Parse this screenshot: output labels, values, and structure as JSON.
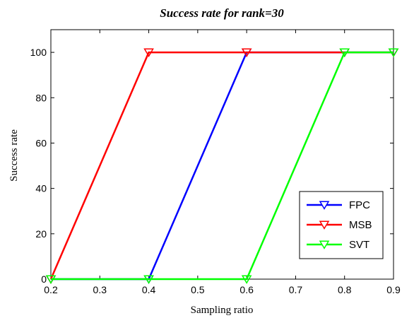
{
  "chart_data": {
    "type": "line",
    "title": "Success rate for rank=30",
    "xlabel": "Sampling ratio",
    "ylabel": "Success rate",
    "xlim": [
      0.2,
      0.9
    ],
    "ylim": [
      0,
      110
    ],
    "xticks": [
      0.2,
      0.3,
      0.4,
      0.5,
      0.6,
      0.7,
      0.8,
      0.9
    ],
    "xtick_labels": [
      "0.2",
      "0.3",
      "0.4",
      "0.5",
      "0.6",
      "0.7",
      "0.8",
      "0.9"
    ],
    "yticks": [
      0,
      20,
      40,
      60,
      80,
      100
    ],
    "ytick_labels": [
      "0",
      "20",
      "40",
      "60",
      "80",
      "100"
    ],
    "grid": false,
    "legend_position": "bottom-right",
    "marker": "down-triangle",
    "series": [
      {
        "name": "FPC",
        "color": "#0000ff",
        "x": [
          0.2,
          0.4,
          0.6,
          0.8,
          0.9
        ],
        "y": [
          0,
          0,
          100,
          100,
          100
        ]
      },
      {
        "name": "MSB",
        "color": "#ff0000",
        "x": [
          0.2,
          0.4,
          0.6,
          0.8,
          0.9
        ],
        "y": [
          0,
          100,
          100,
          100,
          100
        ]
      },
      {
        "name": "SVT",
        "color": "#00ff00",
        "x": [
          0.2,
          0.4,
          0.6,
          0.8,
          0.9
        ],
        "y": [
          0,
          0,
          0,
          100,
          100
        ]
      }
    ]
  }
}
